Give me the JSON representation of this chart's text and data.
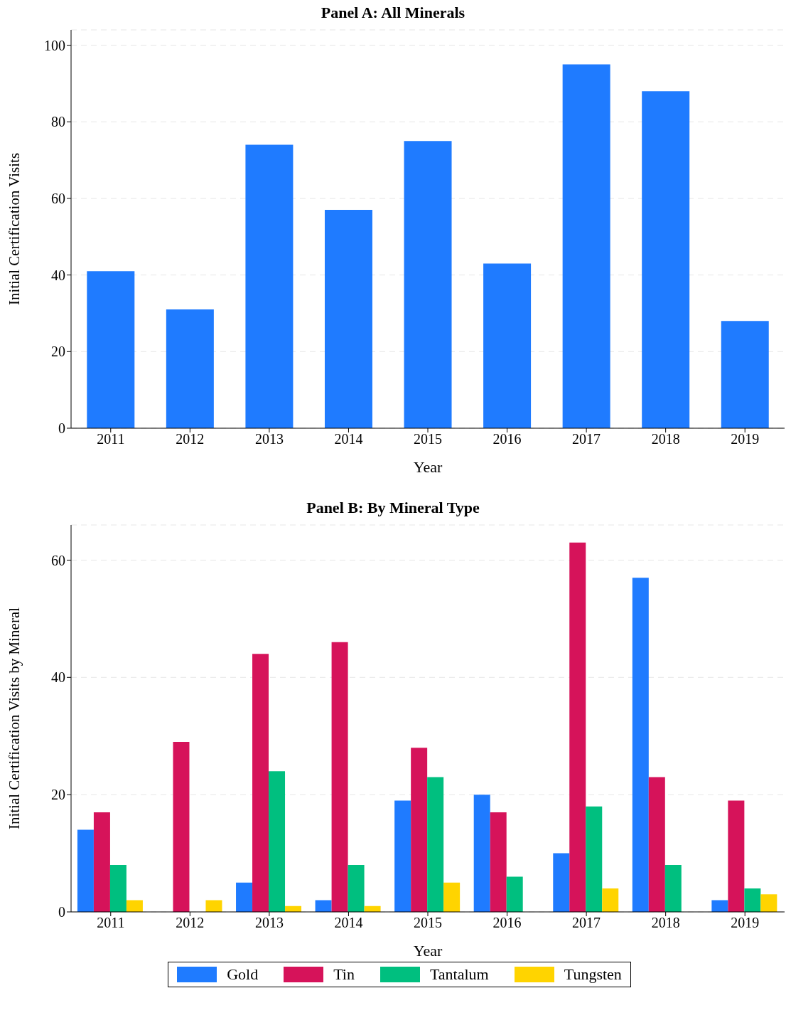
{
  "chart_data": [
    {
      "type": "bar",
      "title": "Panel A: All Minerals",
      "xlabel": "Year",
      "ylabel": "Initial Certification Visits",
      "categories": [
        "2011",
        "2012",
        "2013",
        "2014",
        "2015",
        "2016",
        "2017",
        "2018",
        "2019"
      ],
      "values": [
        41,
        31,
        74,
        57,
        75,
        43,
        95,
        88,
        28
      ],
      "color": "#1f7bff",
      "ylim": [
        0,
        104
      ],
      "yticks": [
        0,
        20,
        40,
        60,
        80,
        100
      ],
      "grid": "y"
    },
    {
      "type": "bar",
      "title": "Panel B: By Mineral Type",
      "xlabel": "Year",
      "ylabel": "Initial Certification Visits by Mineral",
      "categories": [
        "2011",
        "2012",
        "2013",
        "2014",
        "2015",
        "2016",
        "2017",
        "2018",
        "2019"
      ],
      "series": [
        {
          "name": "Gold",
          "color": "#1f7bff",
          "values": [
            14,
            0,
            5,
            2,
            19,
            20,
            10,
            57,
            2
          ]
        },
        {
          "name": "Tin",
          "color": "#d6135a",
          "values": [
            17,
            29,
            44,
            46,
            28,
            17,
            63,
            23,
            19
          ]
        },
        {
          "name": "Tantalum",
          "color": "#00bf7f",
          "values": [
            8,
            0,
            24,
            8,
            23,
            6,
            18,
            8,
            4
          ]
        },
        {
          "name": "Tungsten",
          "color": "#ffd400",
          "values": [
            2,
            2,
            1,
            1,
            5,
            0,
            4,
            0,
            3
          ]
        }
      ],
      "ylim": [
        0,
        66
      ],
      "yticks": [
        0,
        20,
        40,
        60
      ],
      "grid": "y",
      "legend": "bottom"
    }
  ]
}
